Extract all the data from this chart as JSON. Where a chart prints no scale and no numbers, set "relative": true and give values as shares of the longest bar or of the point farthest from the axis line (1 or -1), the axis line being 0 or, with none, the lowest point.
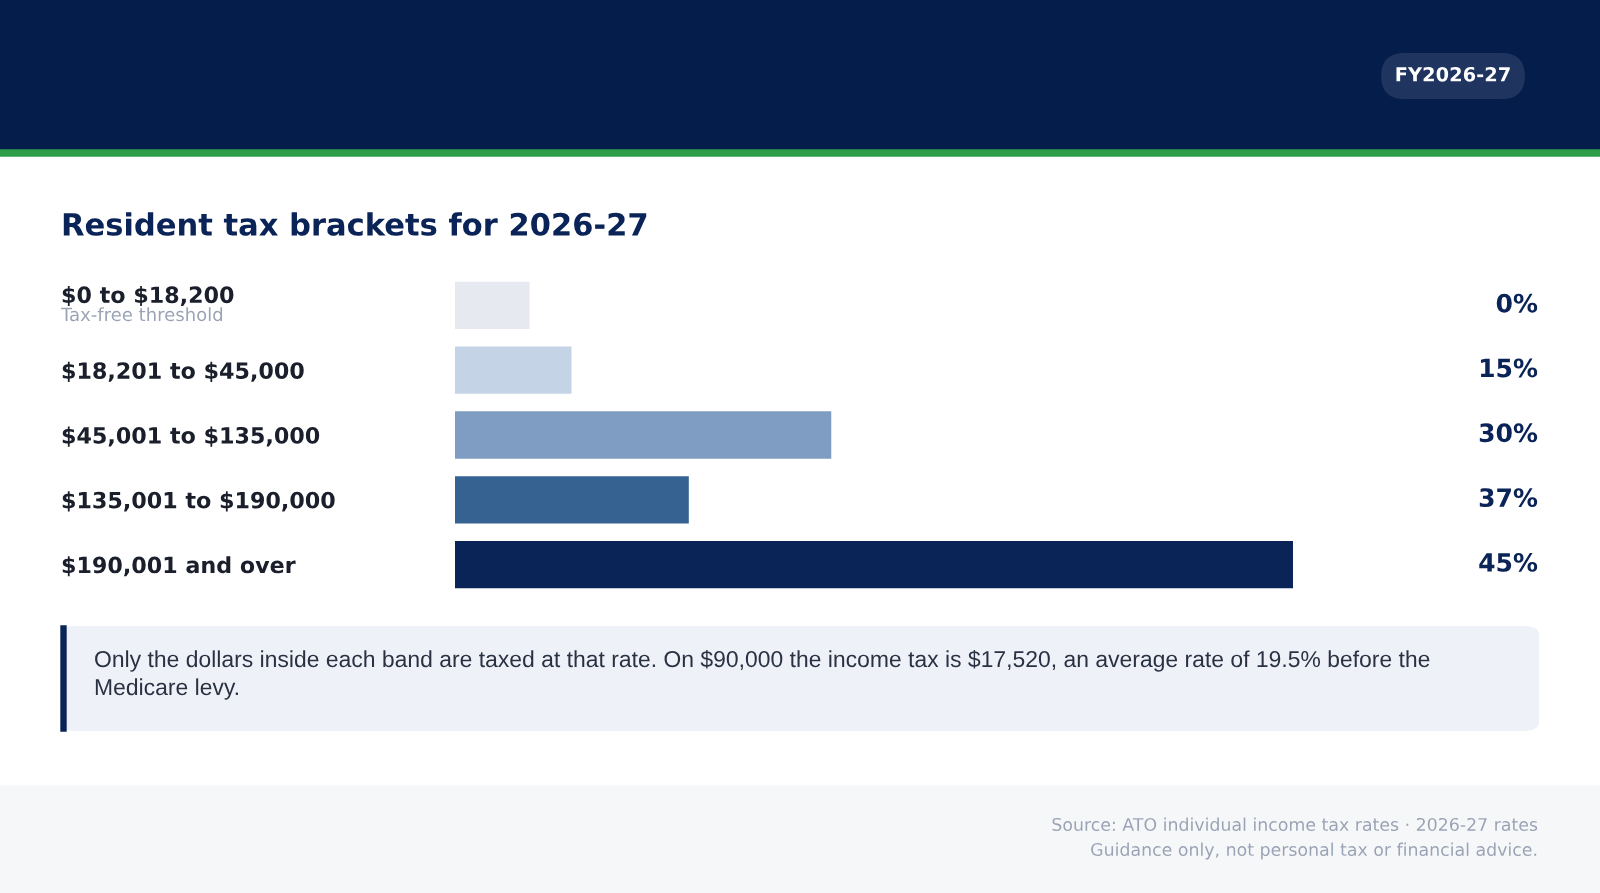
{
  "chart_data": {
    "type": "bar",
    "orientation": "horizontal",
    "relative": true,
    "title": "Resident tax brackets for 2026-27",
    "categories": [
      "$0 to $18,200",
      "$18,201 to $45,000",
      "$45,001 to $135,000",
      "$135,001 to $190,000",
      "$190,001 and over"
    ],
    "values": [
      0.089,
      0.139,
      0.449,
      0.279,
      1.0
    ],
    "colors": [
      "#e6e9f0",
      "#c5d3e6",
      "#7f9dc2",
      "#366292",
      "#0b2458"
    ],
    "annotations": [
      "Tax-free threshold",
      "FY2026-27",
      "Only the dollars inside each band are taxed at that rate. On $90,000 the income tax is $17,520, an average rate of 19.5% before the\nMedicare levy.",
      "Source: ATO individual income tax rates · 2026-27 rates",
      "Guidance only, not personal tax or financial advice.",
      "0%",
      "15%",
      "30%",
      "37%",
      "45%"
    ],
    "grid": false,
    "legend": false
  }
}
